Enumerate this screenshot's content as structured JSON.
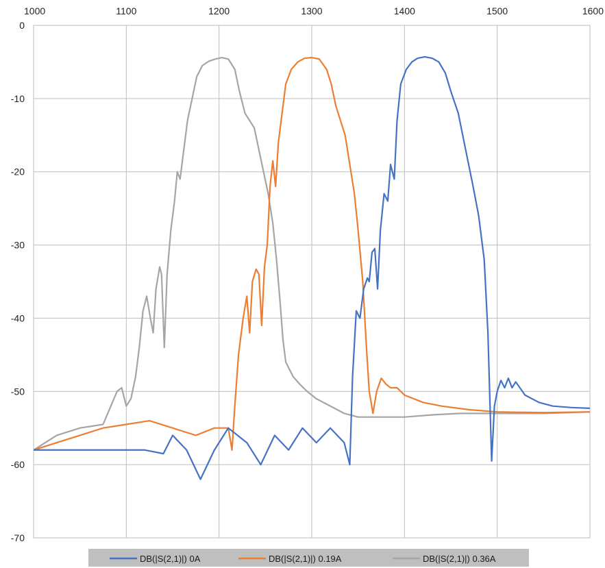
{
  "chart_data": {
    "type": "line",
    "title": "",
    "xlabel": "",
    "ylabel": "",
    "xlim": [
      1000,
      1600
    ],
    "ylim": [
      -70,
      0
    ],
    "x_ticks": [
      1000,
      1100,
      1200,
      1300,
      1400,
      1500,
      1600
    ],
    "y_ticks": [
      0,
      -10,
      -20,
      -30,
      -40,
      -50,
      -60,
      -70
    ],
    "x_axis_position": "top",
    "grid": true,
    "legend_position": "bottom",
    "legend_background": "#bfbfbf",
    "series": [
      {
        "name": "DB(|S(2,1)|) 0A",
        "color": "#4472c4",
        "points": [
          [
            1000,
            -58
          ],
          [
            1050,
            -58
          ],
          [
            1100,
            -58
          ],
          [
            1120,
            -58
          ],
          [
            1140,
            -58.5
          ],
          [
            1150,
            -56
          ],
          [
            1165,
            -58
          ],
          [
            1180,
            -62
          ],
          [
            1195,
            -58
          ],
          [
            1210,
            -55
          ],
          [
            1230,
            -57
          ],
          [
            1245,
            -60
          ],
          [
            1260,
            -56
          ],
          [
            1275,
            -58
          ],
          [
            1290,
            -55
          ],
          [
            1305,
            -57
          ],
          [
            1320,
            -55
          ],
          [
            1335,
            -57
          ],
          [
            1341,
            -60
          ],
          [
            1344,
            -48
          ],
          [
            1348,
            -39
          ],
          [
            1352,
            -40
          ],
          [
            1356,
            -36
          ],
          [
            1360,
            -34.5
          ],
          [
            1362,
            -35
          ],
          [
            1365,
            -31
          ],
          [
            1368,
            -30.5
          ],
          [
            1371,
            -36
          ],
          [
            1374,
            -28
          ],
          [
            1378,
            -23
          ],
          [
            1382,
            -24
          ],
          [
            1385,
            -19
          ],
          [
            1389,
            -21
          ],
          [
            1392,
            -13
          ],
          [
            1396,
            -8
          ],
          [
            1402,
            -6
          ],
          [
            1408,
            -5
          ],
          [
            1414,
            -4.5
          ],
          [
            1422,
            -4.3
          ],
          [
            1430,
            -4.5
          ],
          [
            1437,
            -5
          ],
          [
            1444,
            -6.5
          ],
          [
            1450,
            -9
          ],
          [
            1458,
            -12
          ],
          [
            1466,
            -17
          ],
          [
            1474,
            -22
          ],
          [
            1480,
            -26
          ],
          [
            1486,
            -32
          ],
          [
            1490,
            -42
          ],
          [
            1494,
            -59.5
          ],
          [
            1497,
            -52
          ],
          [
            1500,
            -50
          ],
          [
            1504,
            -48.5
          ],
          [
            1508,
            -49.5
          ],
          [
            1512,
            -48.2
          ],
          [
            1516,
            -49.5
          ],
          [
            1520,
            -48.7
          ],
          [
            1530,
            -50.5
          ],
          [
            1545,
            -51.5
          ],
          [
            1560,
            -52
          ],
          [
            1580,
            -52.2
          ],
          [
            1600,
            -52.3
          ]
        ]
      },
      {
        "name": "DB(|S(2,1)|) 0.19A",
        "color": "#ed7d31",
        "points": [
          [
            1000,
            -58
          ],
          [
            1025,
            -57
          ],
          [
            1050,
            -56
          ],
          [
            1075,
            -55
          ],
          [
            1100,
            -54.5
          ],
          [
            1125,
            -54
          ],
          [
            1150,
            -55
          ],
          [
            1175,
            -56
          ],
          [
            1195,
            -55
          ],
          [
            1210,
            -55
          ],
          [
            1214,
            -58
          ],
          [
            1217,
            -52
          ],
          [
            1221,
            -45
          ],
          [
            1226,
            -40
          ],
          [
            1230,
            -37
          ],
          [
            1233,
            -42
          ],
          [
            1236,
            -35
          ],
          [
            1240,
            -33.3
          ],
          [
            1243,
            -34
          ],
          [
            1246,
            -41
          ],
          [
            1249,
            -33
          ],
          [
            1252,
            -30
          ],
          [
            1255,
            -22
          ],
          [
            1258,
            -18.5
          ],
          [
            1261,
            -22
          ],
          [
            1264,
            -16
          ],
          [
            1267,
            -13
          ],
          [
            1272,
            -8
          ],
          [
            1278,
            -6
          ],
          [
            1285,
            -5
          ],
          [
            1292,
            -4.5
          ],
          [
            1300,
            -4.4
          ],
          [
            1308,
            -4.6
          ],
          [
            1316,
            -6
          ],
          [
            1321,
            -8
          ],
          [
            1326,
            -11
          ],
          [
            1331,
            -13
          ],
          [
            1336,
            -15
          ],
          [
            1341,
            -19
          ],
          [
            1346,
            -23
          ],
          [
            1350,
            -28
          ],
          [
            1355,
            -35
          ],
          [
            1359,
            -44
          ],
          [
            1362,
            -50
          ],
          [
            1366,
            -53
          ],
          [
            1370,
            -50
          ],
          [
            1375,
            -48.2
          ],
          [
            1380,
            -49
          ],
          [
            1385,
            -49.5
          ],
          [
            1392,
            -49.5
          ],
          [
            1400,
            -50.5
          ],
          [
            1420,
            -51.5
          ],
          [
            1440,
            -52
          ],
          [
            1470,
            -52.5
          ],
          [
            1500,
            -52.8
          ],
          [
            1550,
            -52.9
          ],
          [
            1600,
            -52.8
          ]
        ]
      },
      {
        "name": "DB(|S(2,1)|) 0.36A",
        "color": "#a5a5a5",
        "points": [
          [
            1000,
            -58
          ],
          [
            1025,
            -56
          ],
          [
            1050,
            -55
          ],
          [
            1075,
            -54.5
          ],
          [
            1090,
            -50
          ],
          [
            1095,
            -49.5
          ],
          [
            1100,
            -52
          ],
          [
            1105,
            -51
          ],
          [
            1110,
            -48
          ],
          [
            1114,
            -44
          ],
          [
            1118,
            -39
          ],
          [
            1122,
            -37
          ],
          [
            1126,
            -40
          ],
          [
            1129,
            -42
          ],
          [
            1132,
            -36
          ],
          [
            1136,
            -33
          ],
          [
            1138,
            -34
          ],
          [
            1141,
            -44
          ],
          [
            1144,
            -34
          ],
          [
            1148,
            -28
          ],
          [
            1152,
            -24
          ],
          [
            1155,
            -20
          ],
          [
            1158,
            -21
          ],
          [
            1162,
            -17
          ],
          [
            1166,
            -13
          ],
          [
            1171,
            -10
          ],
          [
            1176,
            -7
          ],
          [
            1182,
            -5.5
          ],
          [
            1189,
            -4.9
          ],
          [
            1196,
            -4.6
          ],
          [
            1203,
            -4.4
          ],
          [
            1210,
            -4.6
          ],
          [
            1217,
            -6
          ],
          [
            1222,
            -9
          ],
          [
            1228,
            -12
          ],
          [
            1233,
            -13
          ],
          [
            1238,
            -14
          ],
          [
            1243,
            -17
          ],
          [
            1248,
            -20
          ],
          [
            1253,
            -23
          ],
          [
            1258,
            -27
          ],
          [
            1262,
            -32
          ],
          [
            1266,
            -38
          ],
          [
            1269,
            -43
          ],
          [
            1272,
            -46
          ],
          [
            1276,
            -47
          ],
          [
            1280,
            -48
          ],
          [
            1287,
            -49
          ],
          [
            1295,
            -50
          ],
          [
            1305,
            -51
          ],
          [
            1320,
            -52
          ],
          [
            1335,
            -53
          ],
          [
            1350,
            -53.5
          ],
          [
            1380,
            -53.5
          ],
          [
            1400,
            -53.5
          ],
          [
            1430,
            -53.2
          ],
          [
            1460,
            -53
          ],
          [
            1500,
            -53
          ],
          [
            1550,
            -53
          ],
          [
            1600,
            -52.8
          ]
        ]
      }
    ]
  }
}
